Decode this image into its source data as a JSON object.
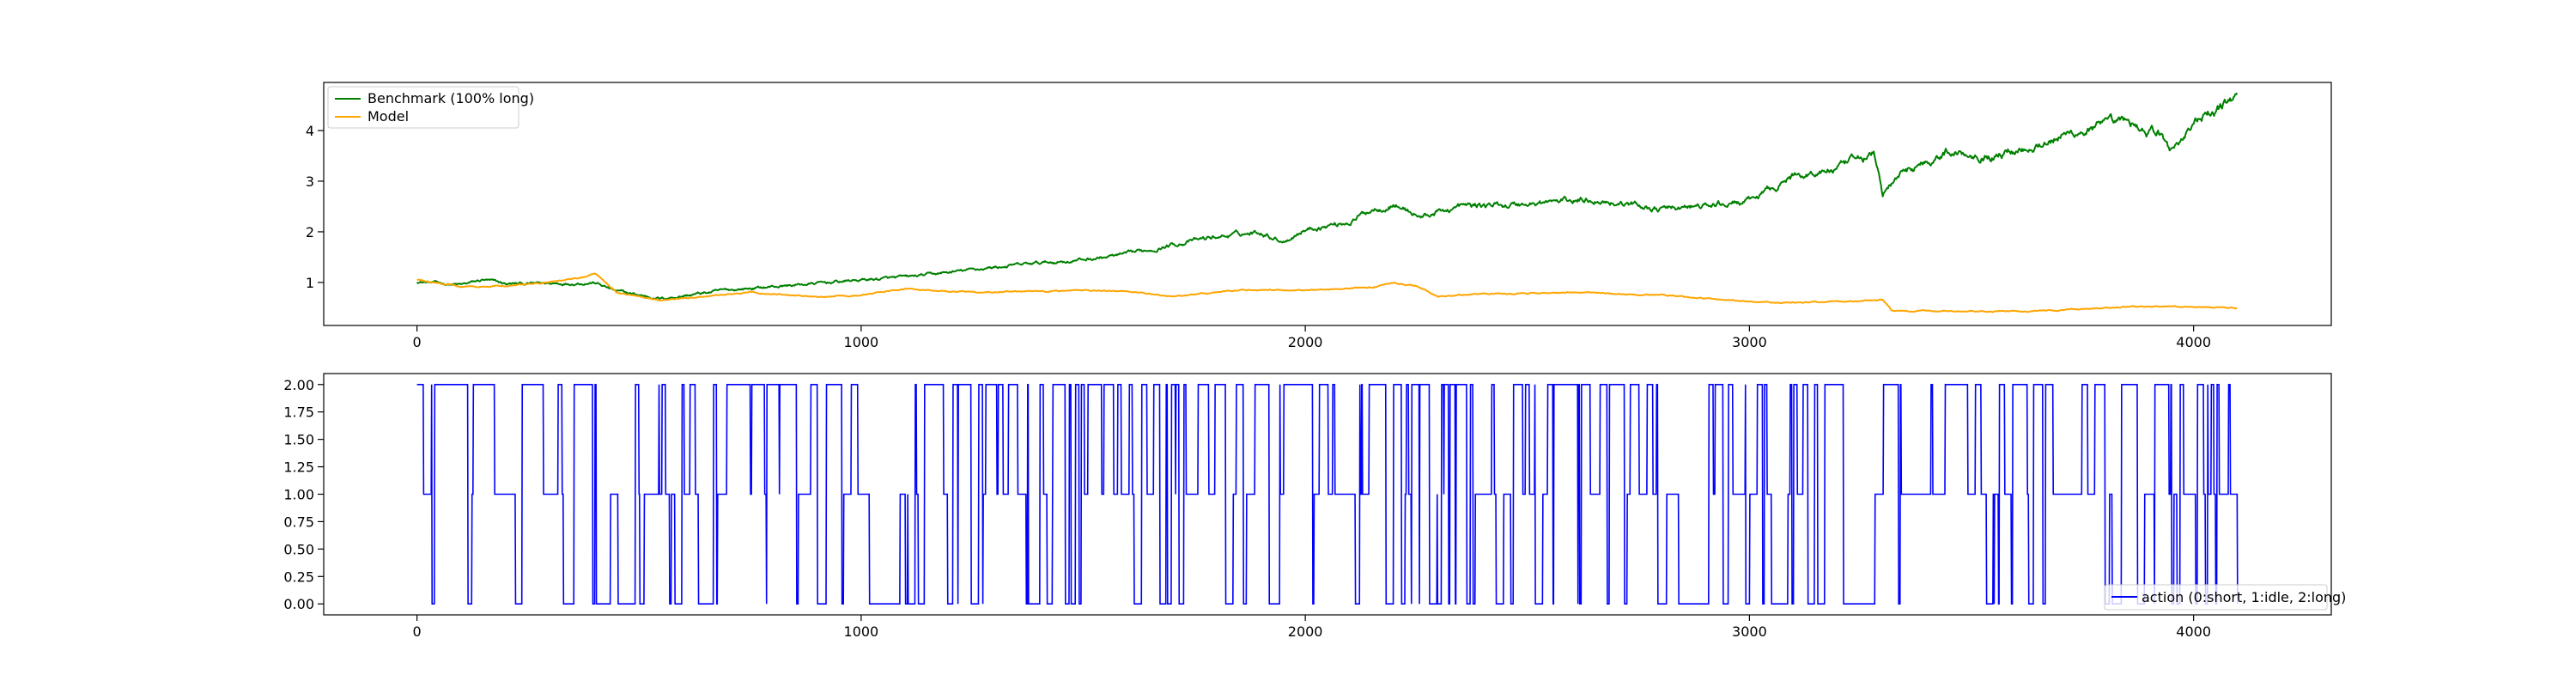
{
  "chart_data": [
    {
      "type": "line",
      "title": "",
      "xlabel": "",
      "ylabel": "",
      "xlim": [
        -210,
        4310
      ],
      "ylim": [
        0.15,
        4.95
      ],
      "x_ticks": [
        "0",
        "1000",
        "2000",
        "3000",
        "4000"
      ],
      "y_ticks": [
        "1",
        "2",
        "3",
        "4"
      ],
      "grid": false,
      "legend_position": "top-left",
      "n_points": 4100,
      "series": [
        {
          "name": "Benchmark (100% long)",
          "color": "#008000",
          "values": [
            [
              0,
              1.02
            ],
            [
              100,
              0.95
            ],
            [
              150,
              1.05
            ],
            [
              200,
              0.97
            ],
            [
              300,
              0.98
            ],
            [
              400,
              1.0
            ],
            [
              450,
              0.82
            ],
            [
              500,
              0.75
            ],
            [
              550,
              0.68
            ],
            [
              700,
              0.85
            ],
            [
              900,
              0.98
            ],
            [
              1000,
              1.05
            ],
            [
              1100,
              1.1
            ],
            [
              1200,
              1.2
            ],
            [
              1300,
              1.3
            ],
            [
              1400,
              1.38
            ],
            [
              1500,
              1.45
            ],
            [
              1600,
              1.55
            ],
            [
              1700,
              1.75
            ],
            [
              1800,
              1.9
            ],
            [
              1900,
              2.0
            ],
            [
              1950,
              1.82
            ],
            [
              2000,
              2.05
            ],
            [
              2100,
              2.2
            ],
            [
              2150,
              2.45
            ],
            [
              2200,
              2.55
            ],
            [
              2260,
              2.3
            ],
            [
              2350,
              2.5
            ],
            [
              2500,
              2.55
            ],
            [
              2650,
              2.65
            ],
            [
              2800,
              2.45
            ],
            [
              2900,
              2.5
            ],
            [
              3000,
              2.6
            ],
            [
              3100,
              3.1
            ],
            [
              3200,
              3.25
            ],
            [
              3280,
              3.55
            ],
            [
              3300,
              2.75
            ],
            [
              3350,
              3.2
            ],
            [
              3450,
              3.6
            ],
            [
              3550,
              3.5
            ],
            [
              3650,
              3.75
            ],
            [
              3750,
              4.0
            ],
            [
              3850,
              4.15
            ],
            [
              3920,
              3.95
            ],
            [
              3950,
              3.6
            ],
            [
              4000,
              4.15
            ],
            [
              4050,
              4.35
            ],
            [
              4100,
              4.75
            ]
          ]
        },
        {
          "name": "Model",
          "color": "#FFA500",
          "values": [
            [
              0,
              1.05
            ],
            [
              100,
              0.92
            ],
            [
              200,
              0.93
            ],
            [
              300,
              1.0
            ],
            [
              380,
              1.12
            ],
            [
              400,
              1.18
            ],
            [
              450,
              0.8
            ],
            [
              500,
              0.72
            ],
            [
              550,
              0.65
            ],
            [
              650,
              0.72
            ],
            [
              750,
              0.8
            ],
            [
              900,
              0.72
            ],
            [
              1000,
              0.75
            ],
            [
              1100,
              0.88
            ],
            [
              1200,
              0.82
            ],
            [
              1400,
              0.82
            ],
            [
              1500,
              0.85
            ],
            [
              1600,
              0.82
            ],
            [
              1700,
              0.72
            ],
            [
              1850,
              0.85
            ],
            [
              2000,
              0.85
            ],
            [
              2150,
              0.9
            ],
            [
              2200,
              1.0
            ],
            [
              2250,
              0.92
            ],
            [
              2300,
              0.72
            ],
            [
              2400,
              0.78
            ],
            [
              2600,
              0.8
            ],
            [
              2800,
              0.75
            ],
            [
              3000,
              0.62
            ],
            [
              3100,
              0.6
            ],
            [
              3200,
              0.62
            ],
            [
              3300,
              0.65
            ],
            [
              3320,
              0.45
            ],
            [
              3500,
              0.42
            ],
            [
              3700,
              0.45
            ],
            [
              3850,
              0.52
            ],
            [
              3950,
              0.52
            ],
            [
              4100,
              0.5
            ]
          ]
        }
      ]
    },
    {
      "type": "line",
      "title": "",
      "xlabel": "",
      "ylabel": "",
      "xlim": [
        -210,
        4310
      ],
      "ylim": [
        -0.1,
        2.1
      ],
      "x_ticks": [
        "0",
        "1000",
        "2000",
        "3000",
        "4000"
      ],
      "y_ticks": [
        "0.00",
        "0.25",
        "0.50",
        "0.75",
        "1.00",
        "1.25",
        "1.50",
        "1.75",
        "2.00"
      ],
      "grid": false,
      "legend_position": "bottom-right",
      "n_points": 4100,
      "series": [
        {
          "name": "action (0:short, 1:idle, 2:long)",
          "color": "#0000FF",
          "values_set": [
            0,
            1,
            2
          ]
        }
      ]
    }
  ]
}
